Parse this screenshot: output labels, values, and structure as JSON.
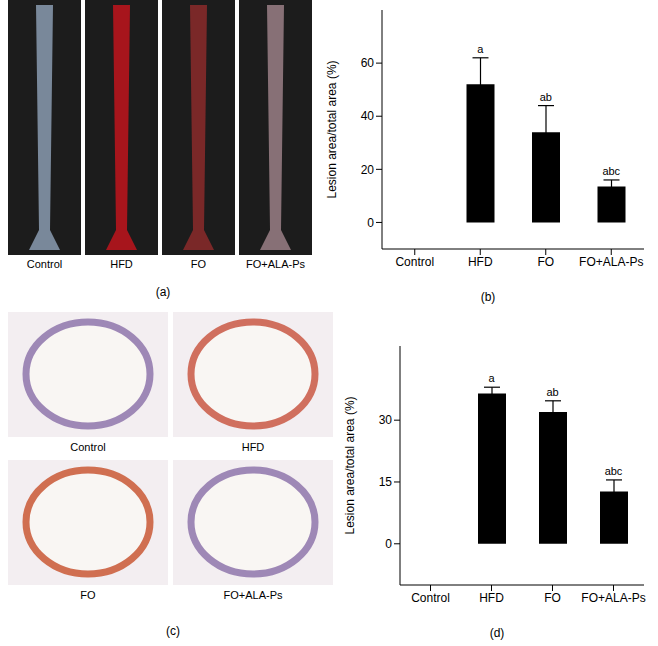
{
  "chart_data": [
    {
      "type": "bar",
      "caption": "(b)",
      "y_label": "Lesion area/total area (%)",
      "categories": [
        "Control",
        "HFD",
        "FO",
        "FO+ALA-Ps"
      ],
      "values": [
        0,
        52,
        34,
        13.5
      ],
      "errors": [
        null,
        10,
        10,
        2.5
      ],
      "significance": [
        null,
        "a",
        "ab",
        "abc"
      ],
      "color": "#000000",
      "ylim": [
        -10,
        80
      ],
      "yticks": [
        0,
        20,
        40,
        60
      ]
    },
    {
      "type": "bar",
      "caption": "(d)",
      "y_label": "Lesion area/total area (%)",
      "categories": [
        "Control",
        "HFD",
        "FO",
        "FO+ALA-Ps"
      ],
      "values": [
        0,
        36.5,
        32,
        12.7
      ],
      "errors": [
        null,
        1.5,
        2.7,
        2.8
      ],
      "significance": [
        null,
        "a",
        "ab",
        "abc"
      ],
      "color": "#000000",
      "ylim": [
        -10,
        48
      ],
      "yticks": [
        0,
        15,
        30
      ]
    }
  ],
  "images": [
    {
      "caption": "(a)",
      "labels": [
        "Control",
        "HFD",
        "FO",
        "FO+ALA-Ps"
      ]
    },
    {
      "caption": "(c)",
      "labels": [
        "Control",
        "HFD",
        "FO",
        "FO+ALA-Ps"
      ]
    }
  ]
}
